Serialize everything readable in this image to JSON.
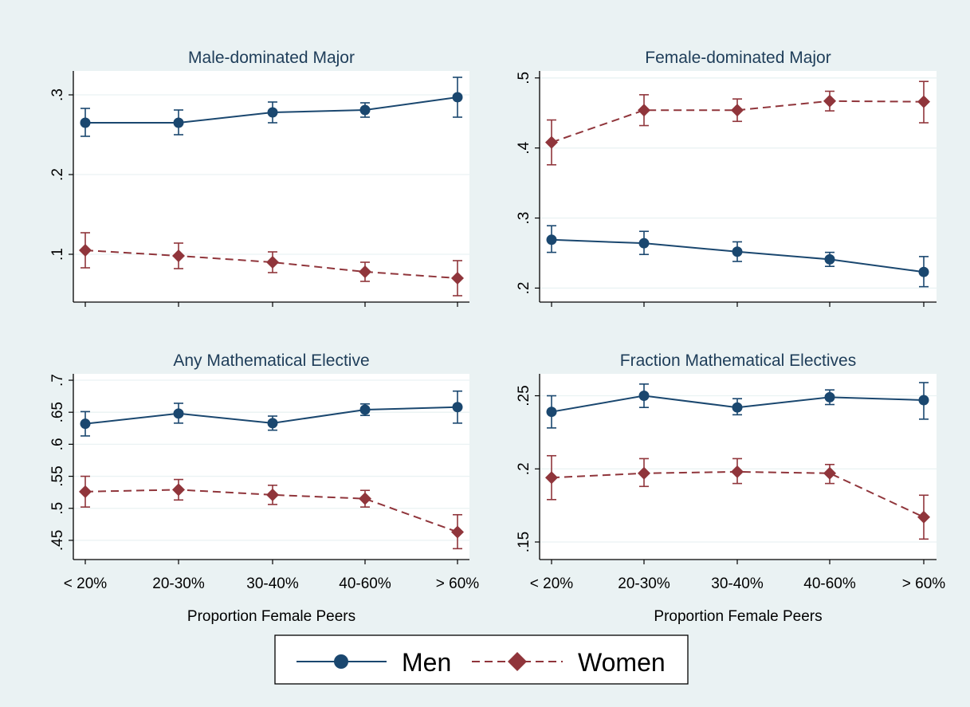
{
  "colors": {
    "background": "#eaf2f3",
    "plot_bg": "#ffffff",
    "grid": "#eaf2f3",
    "men": "#1a476f",
    "women": "#90353b",
    "text": "#1e3d59"
  },
  "legend": {
    "placement": "bottom",
    "men_label": "Men",
    "women_label": "Women"
  },
  "chart_data": [
    {
      "type": "line",
      "title": "Male-dominated Major",
      "xlabel": "",
      "ylabel": "",
      "categories": [
        "< 20%",
        "20-30%",
        "30-40%",
        "40-60%",
        "> 60%"
      ],
      "yticks": [
        0.1,
        0.2,
        0.3
      ],
      "ytick_labels": [
        ".1",
        ".2",
        ".3"
      ],
      "ylim": [
        0.04,
        0.33
      ],
      "grid": true,
      "series": [
        {
          "name": "Men",
          "marker": "circle",
          "line": "solid",
          "values": [
            0.265,
            0.265,
            0.278,
            0.281,
            0.297
          ],
          "lower": [
            0.248,
            0.25,
            0.265,
            0.272,
            0.272
          ],
          "upper": [
            0.283,
            0.281,
            0.291,
            0.29,
            0.322
          ]
        },
        {
          "name": "Women",
          "marker": "diamond",
          "line": "dashed",
          "values": [
            0.105,
            0.098,
            0.09,
            0.078,
            0.07
          ],
          "lower": [
            0.083,
            0.082,
            0.077,
            0.066,
            0.048
          ],
          "upper": [
            0.127,
            0.114,
            0.103,
            0.09,
            0.092
          ]
        }
      ]
    },
    {
      "type": "line",
      "title": "Female-dominated Major",
      "xlabel": "",
      "ylabel": "",
      "categories": [
        "< 20%",
        "20-30%",
        "30-40%",
        "40-60%",
        "> 60%"
      ],
      "yticks": [
        0.2,
        0.3,
        0.4,
        0.5
      ],
      "ytick_labels": [
        ".2",
        ".3",
        ".4",
        ".5"
      ],
      "ylim": [
        0.18,
        0.51
      ],
      "grid": true,
      "series": [
        {
          "name": "Men",
          "marker": "circle",
          "line": "solid",
          "values": [
            0.269,
            0.264,
            0.252,
            0.241,
            0.223
          ],
          "lower": [
            0.251,
            0.248,
            0.238,
            0.231,
            0.202
          ],
          "upper": [
            0.289,
            0.281,
            0.266,
            0.251,
            0.245
          ]
        },
        {
          "name": "Women",
          "marker": "diamond",
          "line": "dashed",
          "values": [
            0.408,
            0.454,
            0.454,
            0.467,
            0.466
          ],
          "lower": [
            0.376,
            0.432,
            0.438,
            0.453,
            0.436
          ],
          "upper": [
            0.44,
            0.476,
            0.47,
            0.481,
            0.495
          ]
        }
      ]
    },
    {
      "type": "line",
      "title": "Any Mathematical Elective",
      "xlabel": "Proportion Female Peers",
      "ylabel": "",
      "categories": [
        "< 20%",
        "20-30%",
        "30-40%",
        "40-60%",
        "> 60%"
      ],
      "yticks": [
        0.45,
        0.5,
        0.55,
        0.6,
        0.65,
        0.7
      ],
      "ytick_labels": [
        ".45",
        ".5",
        ".55",
        ".6",
        ".65",
        ".7"
      ],
      "ylim": [
        0.42,
        0.71
      ],
      "grid": true,
      "series": [
        {
          "name": "Men",
          "marker": "circle",
          "line": "solid",
          "values": [
            0.632,
            0.648,
            0.633,
            0.654,
            0.658
          ],
          "lower": [
            0.613,
            0.633,
            0.622,
            0.645,
            0.633
          ],
          "upper": [
            0.651,
            0.664,
            0.644,
            0.663,
            0.683
          ]
        },
        {
          "name": "Women",
          "marker": "diamond",
          "line": "dashed",
          "values": [
            0.526,
            0.529,
            0.521,
            0.515,
            0.463
          ],
          "lower": [
            0.502,
            0.513,
            0.506,
            0.502,
            0.437
          ],
          "upper": [
            0.55,
            0.545,
            0.536,
            0.528,
            0.49
          ]
        }
      ]
    },
    {
      "type": "line",
      "title": "Fraction Mathematical Electives",
      "xlabel": "Proportion Female Peers",
      "ylabel": "",
      "categories": [
        "< 20%",
        "20-30%",
        "30-40%",
        "40-60%",
        "> 60%"
      ],
      "yticks": [
        0.15,
        0.2,
        0.25
      ],
      "ytick_labels": [
        ".15",
        ".2",
        ".25"
      ],
      "ylim": [
        0.138,
        0.265
      ],
      "grid": true,
      "series": [
        {
          "name": "Men",
          "marker": "circle",
          "line": "solid",
          "values": [
            0.239,
            0.25,
            0.242,
            0.249,
            0.247
          ],
          "lower": [
            0.228,
            0.242,
            0.237,
            0.244,
            0.234
          ],
          "upper": [
            0.25,
            0.258,
            0.248,
            0.254,
            0.259
          ]
        },
        {
          "name": "Women",
          "marker": "diamond",
          "line": "dashed",
          "values": [
            0.194,
            0.197,
            0.198,
            0.197,
            0.167
          ],
          "lower": [
            0.179,
            0.188,
            0.19,
            0.19,
            0.152
          ],
          "upper": [
            0.209,
            0.207,
            0.207,
            0.203,
            0.182
          ]
        }
      ]
    }
  ]
}
